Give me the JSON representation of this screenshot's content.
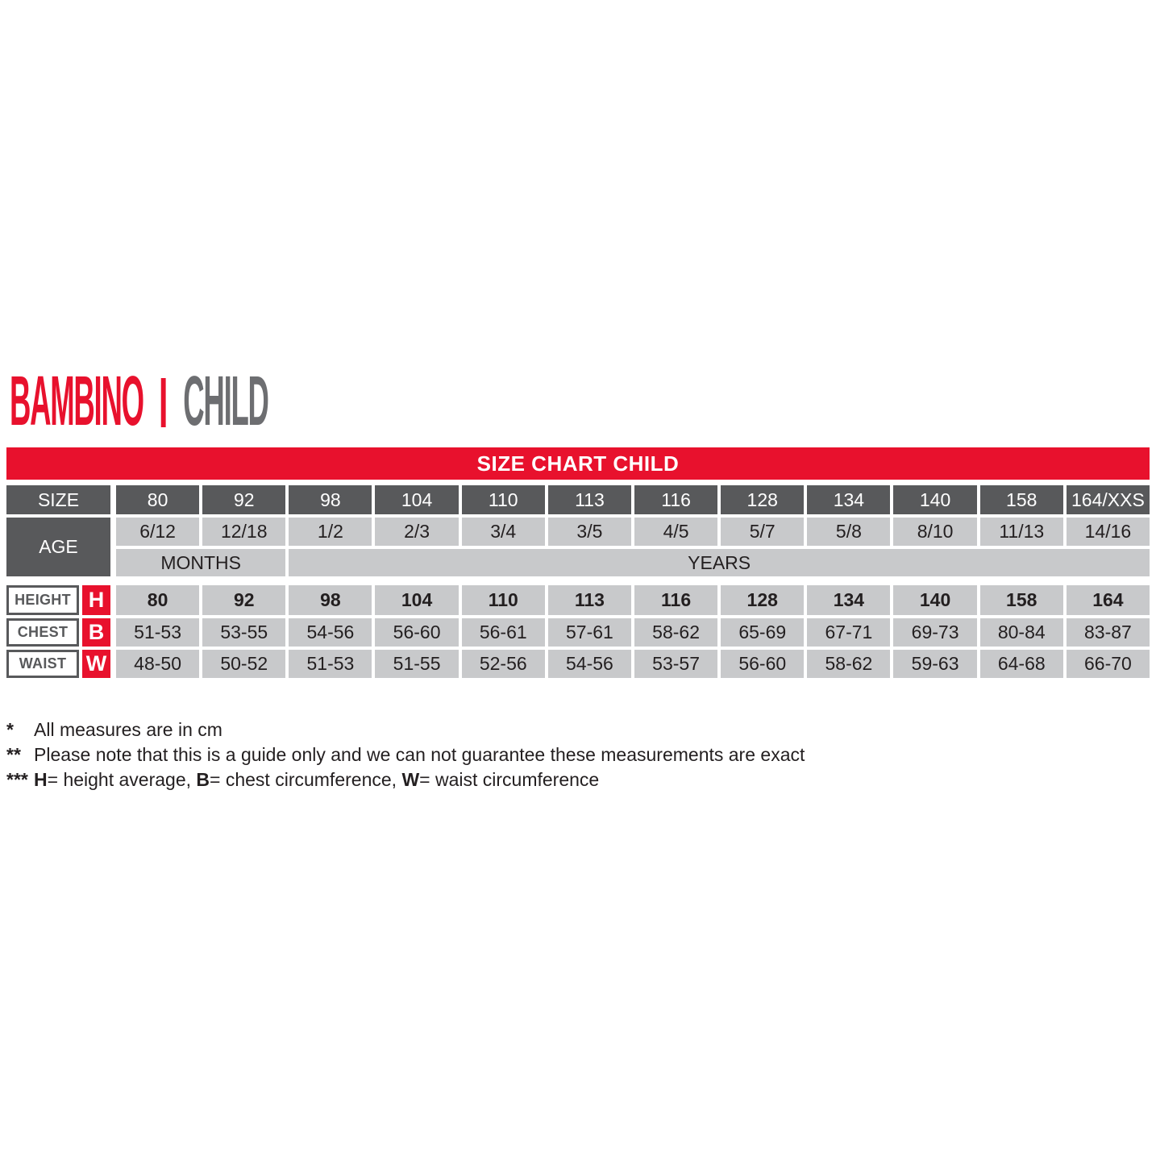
{
  "title": {
    "brand": "BAMBINO",
    "separator": "|",
    "translation": "CHILD"
  },
  "banner": "SIZE CHART CHILD",
  "table": {
    "size_label": "SIZE",
    "age_label": "AGE",
    "months_label": "MONTHS",
    "years_label": "YEARS",
    "sizes": [
      "80",
      "92",
      "98",
      "104",
      "110",
      "113",
      "116",
      "128",
      "134",
      "140",
      "158",
      "164/XXS"
    ],
    "ages": [
      "6/12",
      "12/18",
      "1/2",
      "2/3",
      "3/4",
      "3/5",
      "4/5",
      "5/7",
      "5/8",
      "8/10",
      "11/13",
      "14/16"
    ],
    "measure_rows": [
      {
        "label": "HEIGHT",
        "letter": "H",
        "values": [
          "80",
          "92",
          "98",
          "104",
          "110",
          "113",
          "116",
          "128",
          "134",
          "140",
          "158",
          "164"
        ]
      },
      {
        "label": "CHEST",
        "letter": "B",
        "values": [
          "51-53",
          "53-55",
          "54-56",
          "56-60",
          "56-61",
          "57-61",
          "58-62",
          "65-69",
          "67-71",
          "69-73",
          "80-84",
          "83-87"
        ]
      },
      {
        "label": "WAIST",
        "letter": "W",
        "values": [
          "48-50",
          "50-52",
          "51-53",
          "51-55",
          "52-56",
          "54-56",
          "53-57",
          "56-60",
          "58-62",
          "59-63",
          "64-68",
          "66-70"
        ]
      }
    ]
  },
  "footnotes": {
    "line1": {
      "marker": "*",
      "text": "All measures are in cm"
    },
    "line2": {
      "marker": "**",
      "text": "Please note that this is a guide only and we can not guarantee these measurements are exact"
    },
    "line3": {
      "marker": "***",
      "b1": "H",
      "t1": "= height average, ",
      "b2": "B",
      "t2": "= chest circumference, ",
      "b3": "W",
      "t3": "= waist circumference"
    }
  },
  "colors": {
    "red": "#e8112d",
    "dark_gray": "#58595b",
    "light_gray": "#c8c9cb",
    "title_gray": "#6d6e71",
    "ink": "#231f20"
  }
}
